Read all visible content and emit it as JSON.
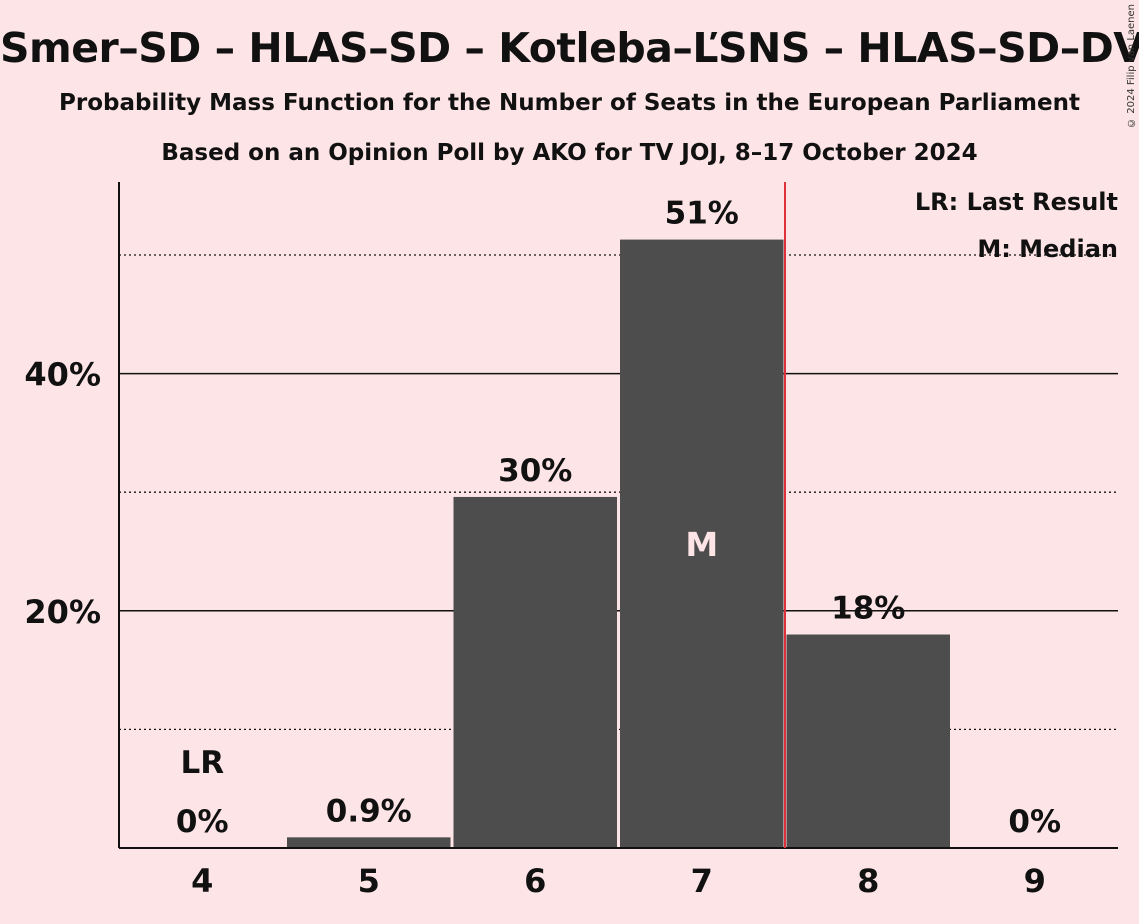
{
  "title": "Smer–SD – HLAS–SD – Kotleba–ĽSNS – HLAS–SD–DV",
  "subtitle1": "Probability Mass Function for the Number of Seats in the European Parliament",
  "subtitle2": "Based on an Opinion Poll by AKO for TV JOJ, 8–17 October 2024",
  "copyright": "© 2024 Filip van Laenen",
  "legend": {
    "last_result": "LR: Last Result",
    "median": "M: Median"
  },
  "colors": {
    "background": "#fde4e6",
    "bar": "#4d4d4d",
    "last_result_line": "#e0303a",
    "median_marker": "#fde4e6"
  },
  "chart_data": {
    "type": "bar",
    "categories": [
      "4",
      "5",
      "6",
      "7",
      "8",
      "9"
    ],
    "values": [
      0,
      0.9,
      29.6,
      51.3,
      18.0,
      0
    ],
    "value_labels": [
      "0%",
      "0.9%",
      "30%",
      "51%",
      "18%",
      "0%"
    ],
    "ylim": [
      0,
      55
    ],
    "yticks": [
      20,
      40
    ],
    "ytick_labels": [
      "20%",
      "40%"
    ],
    "minor_gridlines": [
      10,
      30,
      50
    ],
    "last_result": {
      "category": "4",
      "label": "LR"
    },
    "median": {
      "category": "7",
      "label": "M"
    },
    "vertical_line_after_category": "7"
  }
}
